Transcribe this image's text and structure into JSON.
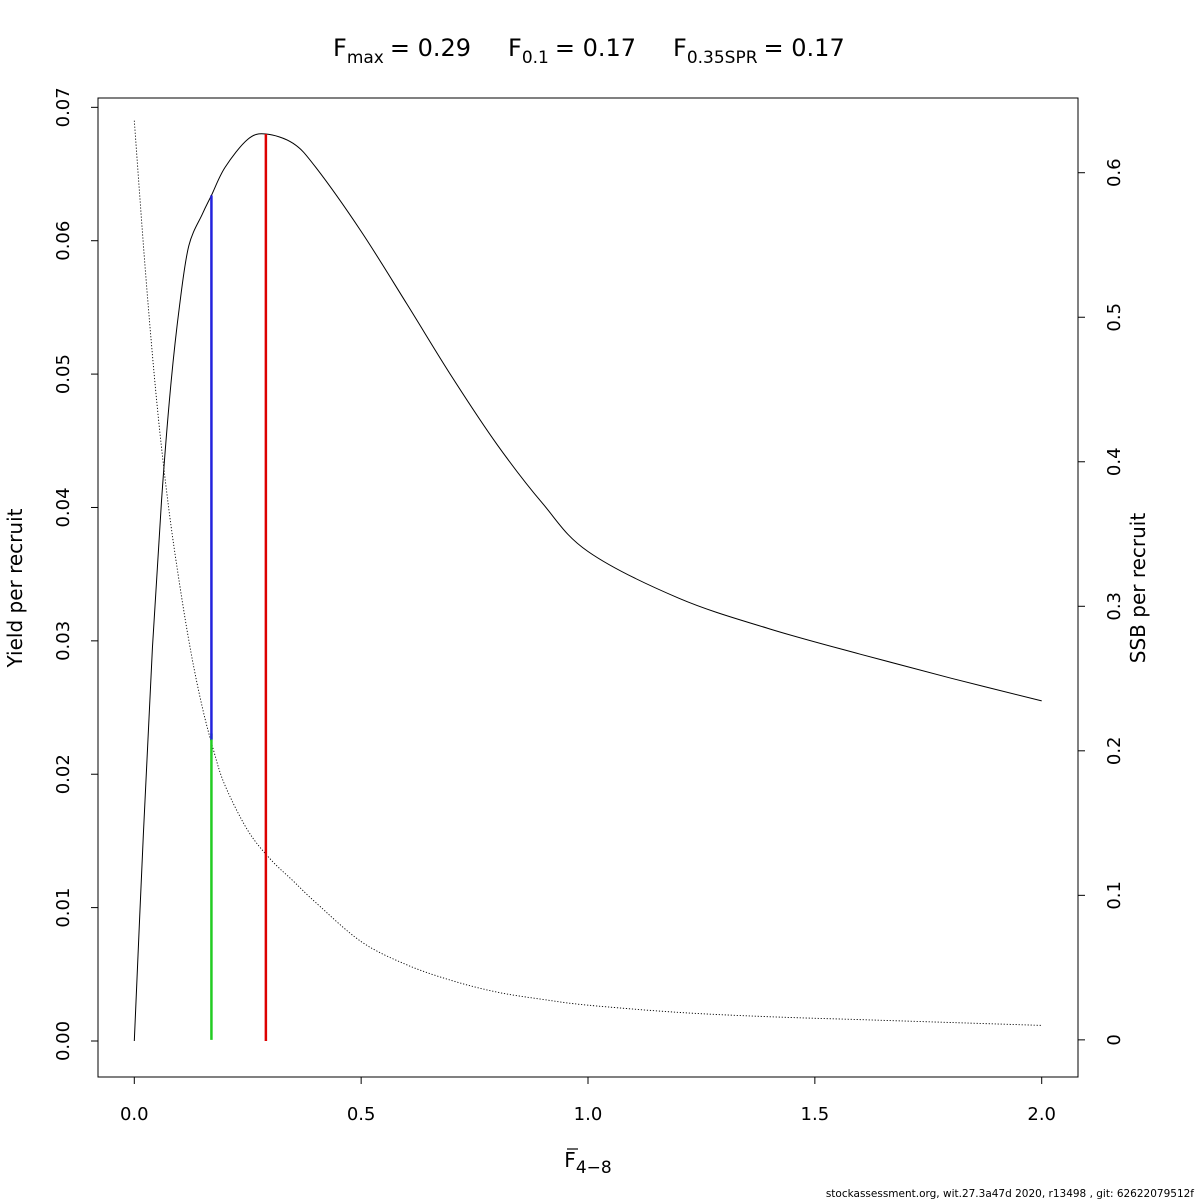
{
  "chart_data": {
    "type": "line",
    "title_parts": {
      "fmax": {
        "sym": "F",
        "sub": "max",
        "val": "= 0.29"
      },
      "f01": {
        "sym": "F",
        "sub": "0.1",
        "val": "= 0.17"
      },
      "fspr": {
        "sym": "F",
        "sub": "0.35SPR",
        "val": "= 0.17"
      }
    },
    "xlabel": {
      "sym": "F",
      "sub": "4−8"
    },
    "ylabel_left": "Yield per recruit",
    "ylabel_right": "SSB per recruit",
    "xlim": [
      -0.08,
      2.08
    ],
    "ylim_left": [
      -0.0027,
      0.0707
    ],
    "ylim_right": [
      -0.0257,
      0.6517
    ],
    "x_ticks": [
      0,
      0.5,
      1,
      1.5,
      2
    ],
    "x_tick_labels": [
      "0.0",
      "0.5",
      "1.0",
      "1.5",
      "2.0"
    ],
    "y_left_ticks": [
      0,
      0.01,
      0.02,
      0.03,
      0.04,
      0.05,
      0.06,
      0.07
    ],
    "y_left_tick_labels": [
      "0.00",
      "0.01",
      "0.02",
      "0.03",
      "0.04",
      "0.05",
      "0.06",
      "0.07"
    ],
    "y_right_ticks": [
      0,
      0.1,
      0.2,
      0.3,
      0.4,
      0.5,
      0.6
    ],
    "y_right_tick_labels": [
      "0",
      "0.1",
      "0.2",
      "0.3",
      "0.4",
      "0.5",
      "0.6"
    ],
    "grid": false,
    "series": [
      {
        "axis": "left",
        "style": "solid",
        "x": [
          0,
          0.02,
          0.04,
          0.06,
          0.08,
          0.1,
          0.12,
          0.15,
          0.17,
          0.2,
          0.25,
          0.29,
          0.35,
          0.4,
          0.5,
          0.6,
          0.7,
          0.8,
          0.9,
          1.0,
          1.2,
          1.4,
          1.6,
          1.8,
          2.0
        ],
        "y": [
          0.0,
          0.0155,
          0.0295,
          0.0405,
          0.049,
          0.0552,
          0.0596,
          0.062,
          0.0634,
          0.0655,
          0.0676,
          0.068,
          0.0673,
          0.0655,
          0.0607,
          0.0553,
          0.0498,
          0.0447,
          0.0403,
          0.0367,
          0.0332,
          0.0309,
          0.029,
          0.0272,
          0.0255
        ]
      },
      {
        "axis": "right",
        "style": "dotted",
        "x": [
          0,
          0.025,
          0.05,
          0.075,
          0.1,
          0.125,
          0.15,
          0.175,
          0.2,
          0.25,
          0.3,
          0.35,
          0.4,
          0.5,
          0.6,
          0.7,
          0.8,
          0.9,
          1.0,
          1.2,
          1.4,
          1.6,
          1.8,
          2.0
        ],
        "y": [
          0.636,
          0.53,
          0.44,
          0.37,
          0.315,
          0.268,
          0.23,
          0.2,
          0.176,
          0.145,
          0.125,
          0.11,
          0.095,
          0.068,
          0.052,
          0.041,
          0.033,
          0.028,
          0.024,
          0.019,
          0.016,
          0.014,
          0.012,
          0.01
        ]
      }
    ],
    "reference_lines": [
      {
        "name": "F0.35SPR",
        "x": 0.17,
        "axis": "right",
        "y_from": 0.0,
        "y_to": 0.212,
        "color": "#22cc22"
      },
      {
        "name": "F0.1",
        "x": 0.17,
        "axis": "left",
        "y_from": 0.0226,
        "y_to": 0.0634,
        "color": "#2222dd"
      },
      {
        "name": "Fmax",
        "x": 0.29,
        "axis": "left",
        "y_from": 0.0,
        "y_to": 0.068,
        "color": "#dd0000"
      }
    ],
    "footer": "stockassessment.org, wit.27.3a47d   2020, r13498 , git: 62622079512f"
  }
}
